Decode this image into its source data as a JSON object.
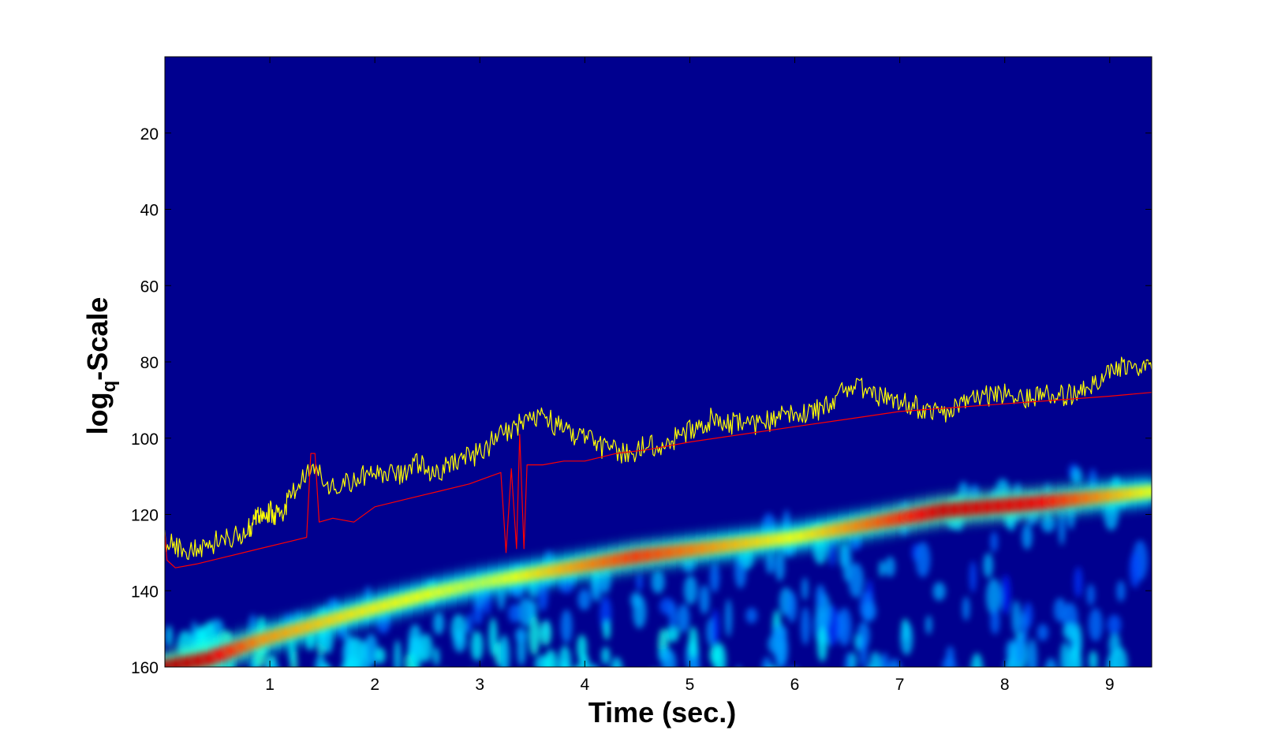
{
  "chart_data": {
    "type": "heatmap",
    "title": "",
    "xlabel": "Time (sec.)",
    "ylabel_main": "log",
    "ylabel_sub": "q",
    "ylabel_rest": "-Scale",
    "xlim": [
      0,
      9.4
    ],
    "ylim": [
      0,
      160
    ],
    "y_reversed": true,
    "grid": false,
    "colormap": "jet",
    "colors": {
      "background": "#00008f",
      "trace_1": "#ffff00",
      "trace_2": "#ff0000"
    },
    "x_ticks": [
      "1",
      "2",
      "3",
      "4",
      "5",
      "6",
      "7",
      "8",
      "9"
    ],
    "y_ticks": [
      "20",
      "40",
      "60",
      "80",
      "100",
      "120",
      "140",
      "160"
    ],
    "ridge": {
      "description_points": [
        {
          "x": 0.0,
          "y": 160
        },
        {
          "x": 0.4,
          "y": 158
        },
        {
          "x": 0.9,
          "y": 153
        },
        {
          "x": 1.8,
          "y": 146
        },
        {
          "x": 2.5,
          "y": 141
        },
        {
          "x": 3.0,
          "y": 138
        },
        {
          "x": 4.5,
          "y": 131
        },
        {
          "x": 6.0,
          "y": 126
        },
        {
          "x": 7.4,
          "y": 119
        },
        {
          "x": 8.3,
          "y": 117
        },
        {
          "x": 9.4,
          "y": 114
        }
      ],
      "intensity": [
        1.0,
        0.95,
        0.65,
        0.5,
        0.45,
        0.35,
        0.8,
        0.45,
        0.95,
        0.9,
        0.45
      ]
    },
    "series": [
      {
        "points": [
          [
            0.0,
            127
          ],
          [
            0.2,
            129
          ],
          [
            0.4,
            128
          ],
          [
            0.6,
            126
          ],
          [
            0.8,
            124
          ],
          [
            0.9,
            120
          ],
          [
            1.0,
            119
          ],
          [
            1.1,
            121
          ],
          [
            1.2,
            115
          ],
          [
            1.4,
            108
          ],
          [
            1.6,
            113
          ],
          [
            1.8,
            111
          ],
          [
            2.0,
            108
          ],
          [
            2.2,
            110
          ],
          [
            2.4,
            107
          ],
          [
            2.6,
            109
          ],
          [
            2.8,
            106
          ],
          [
            3.0,
            104
          ],
          [
            3.2,
            99
          ],
          [
            3.4,
            96
          ],
          [
            3.6,
            94
          ],
          [
            3.8,
            98
          ],
          [
            4.0,
            100
          ],
          [
            4.2,
            103
          ],
          [
            4.4,
            104
          ],
          [
            4.6,
            102
          ],
          [
            4.8,
            101
          ],
          [
            5.0,
            98
          ],
          [
            5.2,
            95
          ],
          [
            5.4,
            96
          ],
          [
            5.6,
            97
          ],
          [
            5.8,
            95
          ],
          [
            6.0,
            93
          ],
          [
            6.2,
            93
          ],
          [
            6.4,
            89
          ],
          [
            6.6,
            86
          ],
          [
            6.8,
            89
          ],
          [
            7.0,
            91
          ],
          [
            7.2,
            92
          ],
          [
            7.4,
            94
          ],
          [
            7.6,
            91
          ],
          [
            7.8,
            89
          ],
          [
            8.0,
            88
          ],
          [
            8.2,
            90
          ],
          [
            8.4,
            89
          ],
          [
            8.6,
            89
          ],
          [
            8.8,
            86
          ],
          [
            9.0,
            83
          ],
          [
            9.2,
            80
          ],
          [
            9.4,
            82
          ]
        ]
      },
      {
        "points": [
          [
            0.0,
            125
          ],
          [
            0.02,
            132
          ],
          [
            0.1,
            134
          ],
          [
            0.3,
            133
          ],
          [
            0.6,
            131
          ],
          [
            0.9,
            129
          ],
          [
            1.2,
            127
          ],
          [
            1.35,
            126
          ],
          [
            1.39,
            104
          ],
          [
            1.43,
            104
          ],
          [
            1.47,
            122
          ],
          [
            1.6,
            121
          ],
          [
            1.8,
            122
          ],
          [
            2.0,
            118
          ],
          [
            2.3,
            116
          ],
          [
            2.6,
            114
          ],
          [
            2.9,
            112
          ],
          [
            3.1,
            110
          ],
          [
            3.2,
            109
          ],
          [
            3.25,
            130
          ],
          [
            3.3,
            108
          ],
          [
            3.35,
            129
          ],
          [
            3.38,
            99
          ],
          [
            3.42,
            129
          ],
          [
            3.45,
            107
          ],
          [
            3.6,
            107
          ],
          [
            3.8,
            106
          ],
          [
            4.0,
            106
          ],
          [
            4.3,
            104
          ],
          [
            4.6,
            103
          ],
          [
            5.0,
            101
          ],
          [
            5.5,
            99
          ],
          [
            6.0,
            97
          ],
          [
            6.5,
            95
          ],
          [
            7.0,
            93
          ],
          [
            7.5,
            92
          ],
          [
            8.0,
            91
          ],
          [
            8.5,
            90
          ],
          [
            9.0,
            89
          ],
          [
            9.4,
            88
          ]
        ]
      }
    ]
  }
}
